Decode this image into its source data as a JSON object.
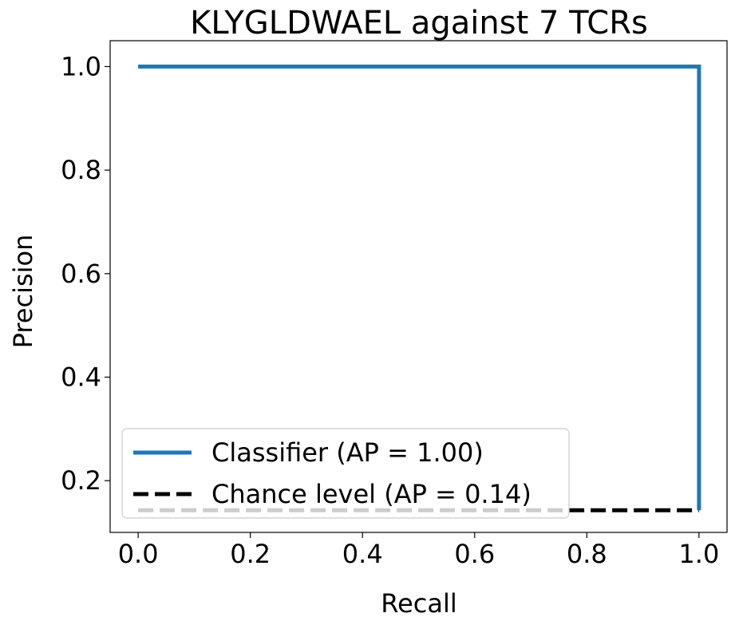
{
  "chart_data": {
    "type": "line",
    "title": "KLYGLDWAEL against 7 TCRs",
    "xlabel": "Recall",
    "ylabel": "Precision",
    "xlim": [
      -0.05,
      1.05
    ],
    "ylim": [
      0.1,
      1.05
    ],
    "xticks": [
      0.0,
      0.2,
      0.4,
      0.6,
      0.8,
      1.0
    ],
    "xtick_labels": [
      "0.0",
      "0.2",
      "0.4",
      "0.6",
      "0.8",
      "1.0"
    ],
    "yticks": [
      0.2,
      0.4,
      0.6,
      0.8,
      1.0
    ],
    "ytick_labels": [
      "0.2",
      "0.4",
      "0.6",
      "0.8",
      "1.0"
    ],
    "grid": false,
    "legend_position": "lower-left",
    "series": [
      {
        "name": "Classifier (AP = 1.00)",
        "color": "#1f77b4",
        "style": "solid",
        "x": [
          0.0,
          1.0,
          1.0
        ],
        "y": [
          1.0,
          1.0,
          0.142857
        ]
      },
      {
        "name": "Chance level (AP = 0.14)",
        "color": "#000000",
        "style": "dashed",
        "x": [
          0.0,
          1.0
        ],
        "y": [
          0.142857,
          0.142857
        ]
      }
    ]
  }
}
